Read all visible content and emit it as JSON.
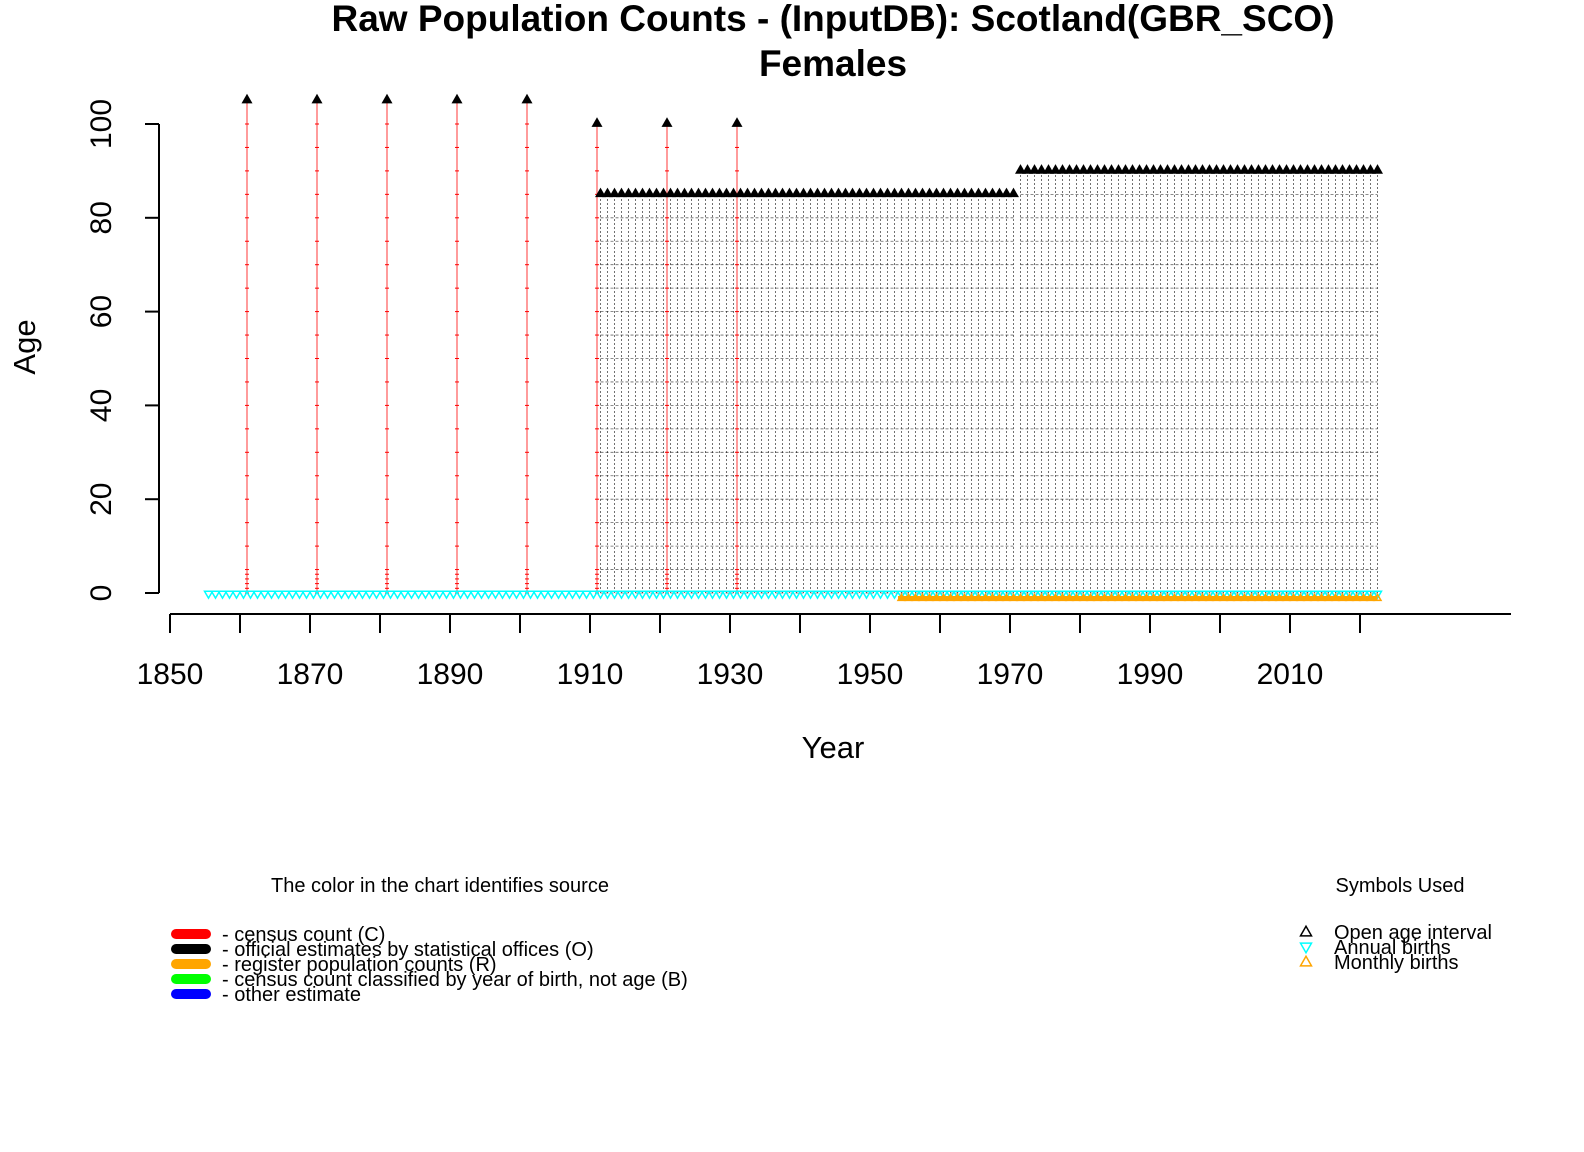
{
  "chart_data": {
    "type": "scatter",
    "title": "Raw Population Counts - (InputDB): Scotland(GBR_SCO)",
    "subtitle": "Females",
    "xlabel": "Year",
    "ylabel": "Age",
    "xlim": [
      1850,
      2030
    ],
    "ylim": [
      0,
      100
    ],
    "x_ticks": [
      1850,
      1860,
      1870,
      1880,
      1890,
      1900,
      1910,
      1920,
      1930,
      1940,
      1950,
      1960,
      1970,
      1980,
      1990,
      2000,
      2010,
      2020
    ],
    "x_tick_labels": [
      "1850",
      "1870",
      "1890",
      "1910",
      "1930",
      "1950",
      "1970",
      "1990",
      "2010"
    ],
    "y_ticks": [
      0,
      20,
      40,
      60,
      80,
      100
    ],
    "y_tick_labels": [
      "0",
      "20",
      "40",
      "60",
      "80",
      "100"
    ],
    "grid": false,
    "colors": {
      "census": "#ff0000",
      "official": "#000000",
      "register": "#ffa500",
      "birth_classified": "#00ff00",
      "other": "#0000ff",
      "annual_births": "#00ffff",
      "monthly_births": "#ffa500"
    },
    "series": [
      {
        "name": "census count (C)",
        "color": "#ff0000",
        "points": [
          {
            "year": 1861,
            "open_age": 105
          },
          {
            "year": 1871,
            "open_age": 105
          },
          {
            "year": 1881,
            "open_age": 105
          },
          {
            "year": 1891,
            "open_age": 105
          },
          {
            "year": 1901,
            "open_age": 105
          },
          {
            "year": 1911,
            "open_age": 100
          },
          {
            "year": 1921,
            "open_age": 100
          },
          {
            "year": 1931,
            "open_age": 100
          }
        ]
      },
      {
        "name": "official estimates by statistical offices (O)",
        "color": "#000000",
        "ranges": [
          {
            "from": 1911,
            "to": 1970,
            "open_age": 85
          },
          {
            "from": 1971,
            "to": 2022,
            "open_age": 90
          }
        ]
      }
    ],
    "births": [
      {
        "kind": "annual",
        "from": 1855,
        "to": 2022,
        "color": "#00ffff"
      },
      {
        "kind": "monthly",
        "from": 1954,
        "to": 2022,
        "color": "#ffa500"
      }
    ],
    "legend_source": {
      "title": "The color in the chart identifies source",
      "placement": "bottom-left",
      "items": [
        {
          "label": "- census count (C)",
          "color": "#ff0000"
        },
        {
          "label": "- official estimates by statistical offices (O)",
          "color": "#000000"
        },
        {
          "label": "- register population counts (R)",
          "color": "#ffa500"
        },
        {
          "label": "- census count classified by year of birth, not age (B)",
          "color": "#00ff00"
        },
        {
          "label": "- other estimate",
          "color": "#0000ff"
        }
      ]
    },
    "legend_symbols": {
      "title": "Symbols Used",
      "placement": "bottom-right",
      "items": [
        {
          "label": "Open age interval",
          "symbol": "triangle-up",
          "color": "#000000"
        },
        {
          "label": "Annual births",
          "symbol": "triangle-down",
          "color": "#00ffff"
        },
        {
          "label": "Monthly births",
          "symbol": "triangle-up",
          "color": "#ffa500"
        }
      ]
    }
  }
}
